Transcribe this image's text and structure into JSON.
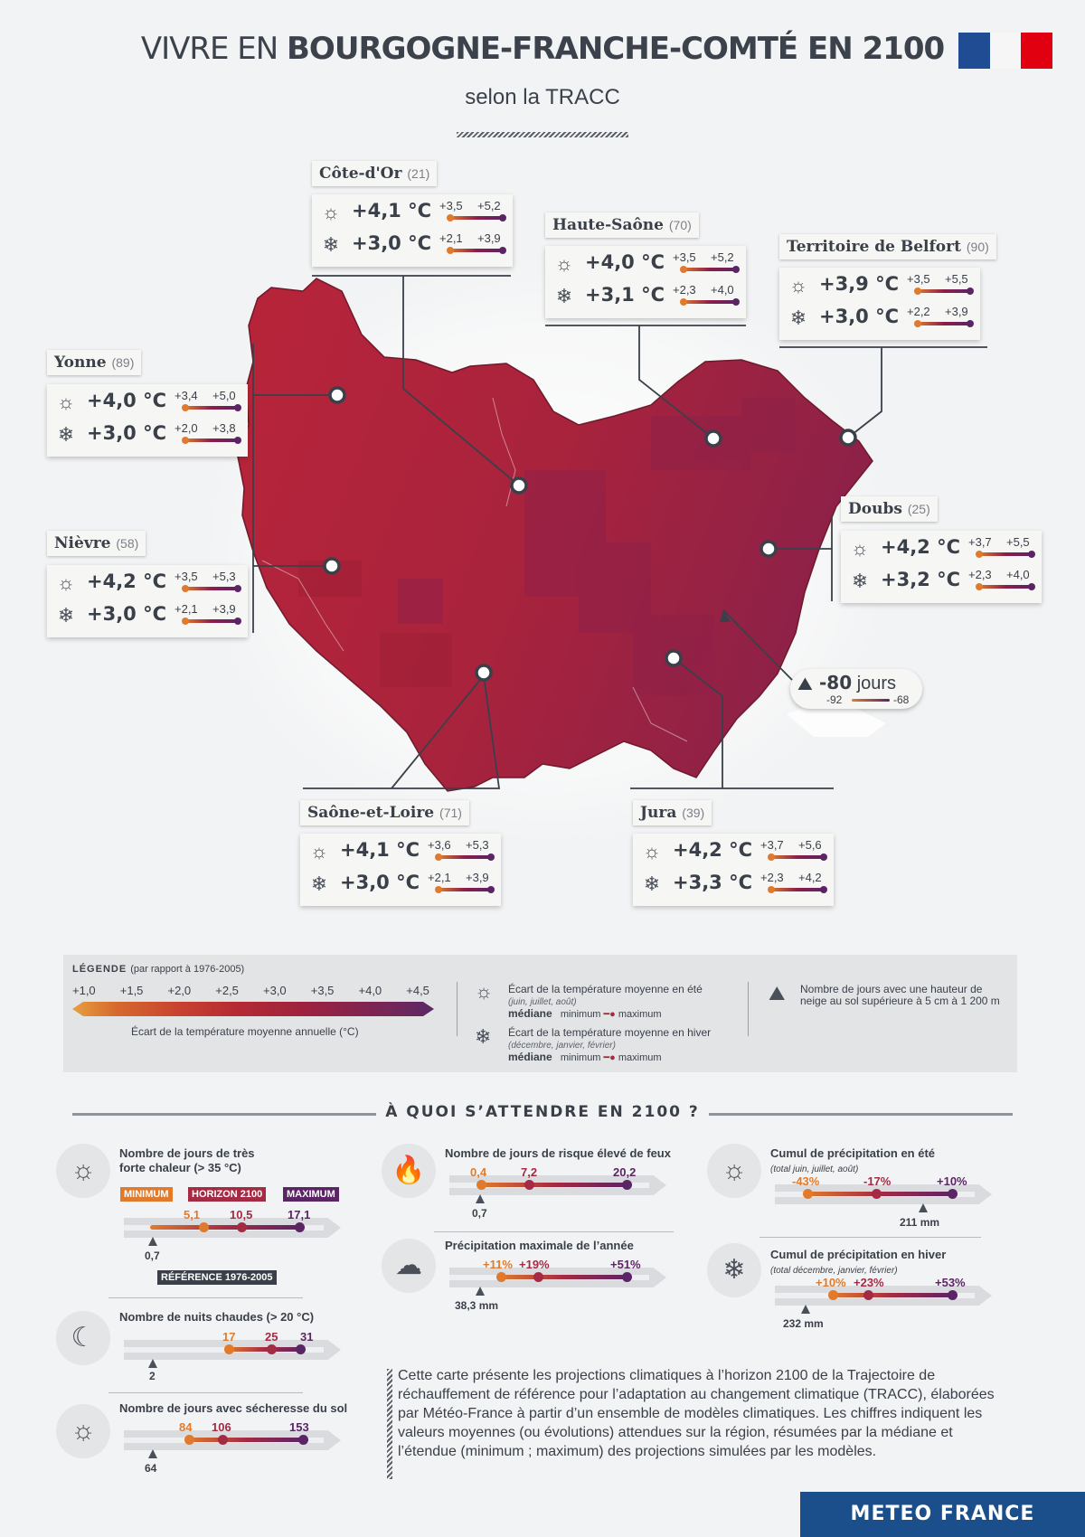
{
  "header": {
    "title_light": "VIVRE EN ",
    "title_bold": "BOURGOGNE-FRANCHE-COMTÉ EN 2100",
    "subtitle": "selon la TRACC"
  },
  "departments": [
    {
      "id": "cote-dor",
      "name": "Côte-d'Or",
      "code": "(21)",
      "summer": {
        "median": "+4,1 °C",
        "min": "+3,5",
        "max": "+5,2"
      },
      "winter": {
        "median": "+3,0 °C",
        "min": "+2,1",
        "max": "+3,9"
      }
    },
    {
      "id": "haute-saone",
      "name": "Haute-Saône",
      "code": "(70)",
      "summer": {
        "median": "+4,0 °C",
        "min": "+3,5",
        "max": "+5,2"
      },
      "winter": {
        "median": "+3,1 °C",
        "min": "+2,3",
        "max": "+4,0"
      }
    },
    {
      "id": "belfort",
      "name": "Territoire de Belfort",
      "code": "(90)",
      "summer": {
        "median": "+3,9 °C",
        "min": "+3,5",
        "max": "+5,5"
      },
      "winter": {
        "median": "+3,0 °C",
        "min": "+2,2",
        "max": "+3,9"
      }
    },
    {
      "id": "yonne",
      "name": "Yonne",
      "code": "(89)",
      "summer": {
        "median": "+4,0 °C",
        "min": "+3,4",
        "max": "+5,0"
      },
      "winter": {
        "median": "+3,0 °C",
        "min": "+2,0",
        "max": "+3,8"
      }
    },
    {
      "id": "nievre",
      "name": "Nièvre",
      "code": "(58)",
      "summer": {
        "median": "+4,2 °C",
        "min": "+3,5",
        "max": "+5,3"
      },
      "winter": {
        "median": "+3,0 °C",
        "min": "+2,1",
        "max": "+3,9"
      }
    },
    {
      "id": "doubs",
      "name": "Doubs",
      "code": "(25)",
      "summer": {
        "median": "+4,2 °C",
        "min": "+3,7",
        "max": "+5,5"
      },
      "winter": {
        "median": "+3,2 °C",
        "min": "+2,3",
        "max": "+4,0"
      }
    },
    {
      "id": "saone-et-loire",
      "name": "Saône-et-Loire",
      "code": "(71)",
      "summer": {
        "median": "+4,1 °C",
        "min": "+3,6",
        "max": "+5,3"
      },
      "winter": {
        "median": "+3,0 °C",
        "min": "+2,1",
        "max": "+3,9"
      }
    },
    {
      "id": "jura",
      "name": "Jura",
      "code": "(39)",
      "summer": {
        "median": "+4,2 °C",
        "min": "+3,7",
        "max": "+5,6"
      },
      "winter": {
        "median": "+3,3 °C",
        "min": "+2,3",
        "max": "+4,2"
      }
    }
  ],
  "snow": {
    "value": "-80",
    "unit": " jours",
    "min": "-92",
    "max": "-68"
  },
  "legend": {
    "title": "LÉGENDE",
    "period": "(par rapport à 1976-2005)",
    "ticks": [
      "+1,0",
      "+1,5",
      "+2,0",
      "+2,5",
      "+3,0",
      "+3,5",
      "+4,0",
      "+4,5"
    ],
    "ramp_caption": "Écart de la température moyenne annuelle (°C)",
    "summer_text": "Écart de la température moyenne en été",
    "summer_months": "(juin, juillet, août)",
    "winter_text": "Écart de la température moyenne en hiver",
    "winter_months": "(décembre, janvier, février)",
    "median": "médiane",
    "minimum": "minimum",
    "maximum": "maximum",
    "snow_text_1": "Nombre de jours avec une hauteur de",
    "snow_text_2": "neige au sol supérieure à 5 cm à 1 200 m"
  },
  "section_title": "À QUOI S’ATTENDRE EN 2100 ?",
  "indicators": {
    "heat": {
      "title_1": "Nombre de jours de très",
      "title_2": "forte chaleur (> 35 °C)",
      "min": "5,1",
      "median": "10,5",
      "max": "17,1",
      "ref": "0,7",
      "tag_min": "MINIMUM",
      "tag_med": "HORIZON 2100",
      "tag_max": "MAXIMUM",
      "tag_ref": "RÉFÉRENCE 1976-2005"
    },
    "nights": {
      "title": "Nombre de nuits chaudes (> 20 °C)",
      "min": "17",
      "median": "25",
      "max": "31",
      "ref": "2"
    },
    "drought": {
      "title": "Nombre de jours avec sécheresse du sol",
      "min": "84",
      "median": "106",
      "max": "153",
      "ref": "64"
    },
    "fire": {
      "title": "Nombre de jours de risque élevé de feux",
      "min": "0,4",
      "median": "7,2",
      "max": "20,2",
      "ref": "0,7"
    },
    "maxprecip": {
      "title": "Précipitation maximale de l’année",
      "min": "+11%",
      "median": "+19%",
      "max": "+51%",
      "ref": "38,3 mm"
    },
    "summerprecip": {
      "title": "Cumul de précipitation en été",
      "sub": "(total juin, juillet, août)",
      "min": "-43%",
      "median": "-17%",
      "max": "+10%",
      "ref": "211 mm"
    },
    "winterprecip": {
      "title": "Cumul de précipitation en hiver",
      "sub": "(total décembre, janvier, février)",
      "min": "+10%",
      "median": "+23%",
      "max": "+53%",
      "ref": "232 mm"
    }
  },
  "note": "Cette carte présente les projections climatiques à l’horizon 2100 de la Trajectoire de réchauffement de référence pour l’adaptation au changement climatique (TRACC), élaborées par Météo-France à partir d’un ensemble de modèles climatiques. Les chiffres indiquent les valeurs moyennes (ou évolutions) attendues sur la région, résumées par la médiane et l’étendue (minimum ; maximum) des projections simulées par les modèles.",
  "footer_logo": "METEO FRANCE",
  "colors": {
    "min": "#e07b2d",
    "median": "#a52a43",
    "max": "#5b2465",
    "map": "#b8243a",
    "brand": "#1a4f8c"
  }
}
